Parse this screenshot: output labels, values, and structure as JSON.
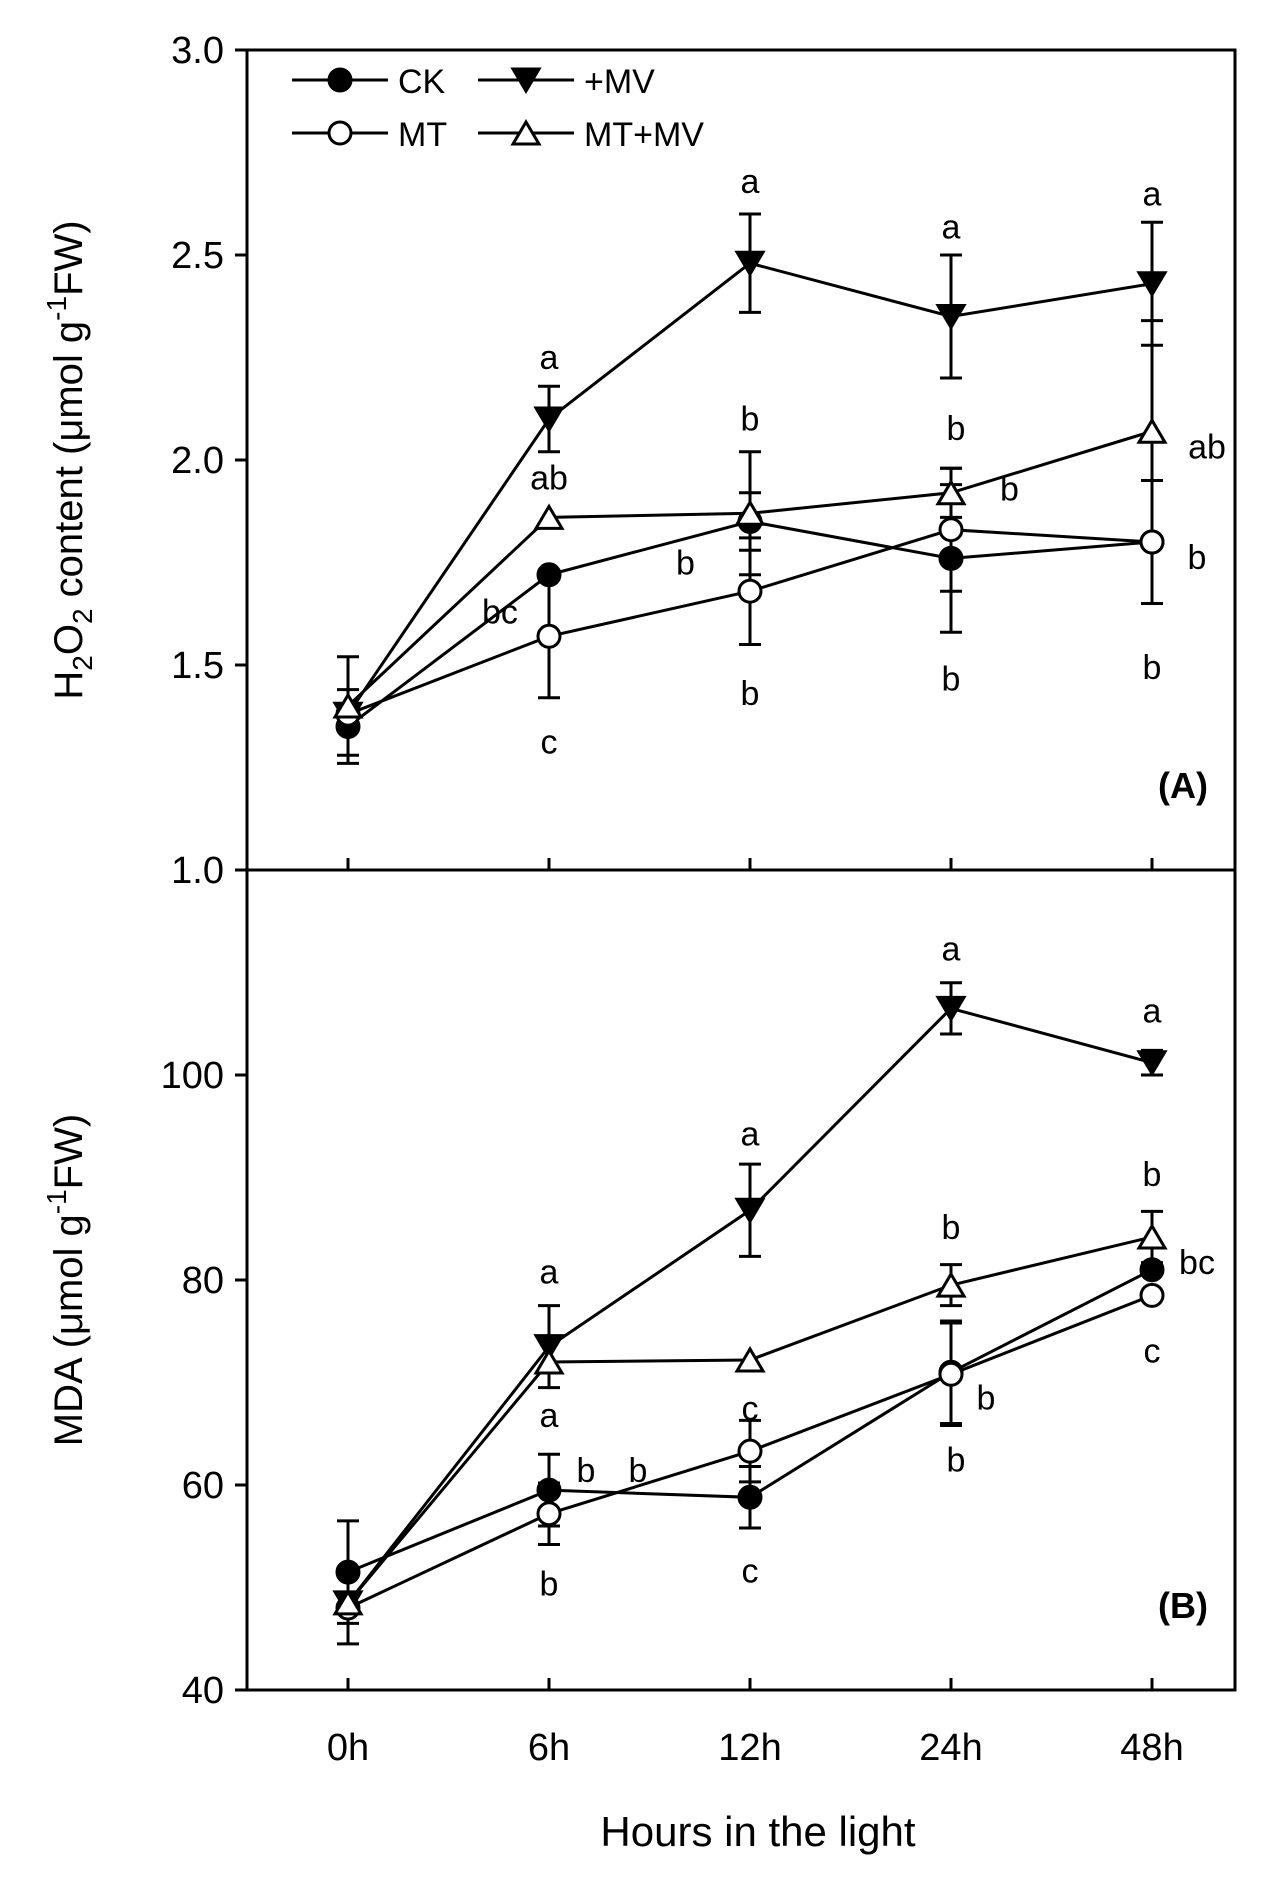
{
  "figure": {
    "xlabel": "Hours in the light",
    "x_categories": [
      "0h",
      "6h",
      "12h",
      "24h",
      "48h"
    ]
  },
  "legend": {
    "entries": [
      {
        "name": "CK",
        "marker": "circle-filled"
      },
      {
        "name": "+MV",
        "marker": "triangle-down-filled"
      },
      {
        "name": "MT",
        "marker": "circle-open"
      },
      {
        "name": "MT+MV",
        "marker": "triangle-up-open"
      }
    ]
  },
  "chart_data": [
    {
      "type": "line",
      "panel_label": "(A)",
      "ylabel": {
        "text_main": "H",
        "sub1": "2",
        "text_mid": "O",
        "sub2": "2",
        "text_rest": " content (μmol g",
        "sup": "-1",
        "text_end": "FW)"
      },
      "ylim": [
        1.0,
        3.0
      ],
      "yticks": [
        "1.0",
        "1.5",
        "2.0",
        "2.5",
        "3.0"
      ],
      "categories": [
        "0h",
        "6h",
        "12h",
        "24h",
        "48h"
      ],
      "series": [
        {
          "name": "CK",
          "marker": "circle-filled",
          "values": [
            1.35,
            1.72,
            1.85,
            1.76,
            1.8
          ],
          "errors": [
            0.09,
            0.0,
            0.07,
            0.18,
            0.15
          ],
          "letters": [
            "",
            "",
            "",
            "b",
            "b"
          ]
        },
        {
          "name": "+MV",
          "marker": "triangle-down-filled",
          "values": [
            1.38,
            2.1,
            2.48,
            2.35,
            2.43
          ],
          "errors": [
            0.0,
            0.08,
            0.12,
            0.15,
            0.15
          ],
          "letters": [
            "",
            "a",
            "a",
            "a",
            "a"
          ]
        },
        {
          "name": "MT",
          "marker": "circle-open",
          "values": [
            1.38,
            1.57,
            1.68,
            1.83,
            1.8
          ],
          "errors": [
            0.0,
            0.15,
            0.13,
            0.15,
            0.15
          ],
          "letters": [
            "",
            "c",
            "b",
            "b",
            "b"
          ]
        },
        {
          "name": "MT+MV",
          "marker": "triangle-up-open",
          "values": [
            1.4,
            1.86,
            1.87,
            1.92,
            2.07
          ],
          "errors": [
            0.12,
            0.0,
            0.15,
            0.06,
            0.27
          ],
          "letters": [
            "",
            "ab",
            "b",
            "b",
            "ab"
          ]
        }
      ],
      "annotations": [
        "bc",
        "b",
        "b"
      ]
    },
    {
      "type": "line",
      "panel_label": "(B)",
      "ylabel": {
        "text_main": "MDA (μmol g",
        "sup": "-1",
        "text_end": "FW)"
      },
      "ylim": [
        40,
        120
      ],
      "yticks": [
        "40",
        "60",
        "80",
        "100"
      ],
      "categories": [
        "0h",
        "6h",
        "12h",
        "24h",
        "48h"
      ],
      "series": [
        {
          "name": "CK",
          "marker": "circle-filled",
          "values": [
            51.5,
            59.5,
            58.8,
            71.0,
            81.0
          ],
          "errors": [
            5.0,
            3.5,
            3.0,
            5.0,
            0.0
          ],
          "letters": [
            "",
            "b",
            "c",
            "b",
            "bc"
          ]
        },
        {
          "name": "+MV",
          "marker": "triangle-down-filled",
          "values": [
            48.5,
            73.5,
            86.8,
            106.5,
            101.2
          ],
          "errors": [
            0.0,
            4.0,
            4.5,
            2.5,
            1.2
          ],
          "letters": [
            "",
            "a",
            "a",
            "a",
            "a"
          ]
        },
        {
          "name": "MT",
          "marker": "circle-open",
          "values": [
            48.0,
            57.2,
            63.3,
            70.8,
            78.5
          ],
          "errors": [
            3.5,
            3.0,
            3.0,
            5.0,
            0.0
          ],
          "letters": [
            "",
            "b",
            "",
            "b",
            "c"
          ]
        },
        {
          "name": "MT+MV",
          "marker": "triangle-up-open",
          "values": [
            48.5,
            72.0,
            72.2,
            79.5,
            84.2
          ],
          "errors": [
            0.0,
            0.0,
            0.0,
            2.0,
            2.5
          ],
          "letters": [
            "",
            "a",
            "c",
            "b",
            "b"
          ]
        }
      ],
      "annotations": [
        "b"
      ]
    }
  ]
}
